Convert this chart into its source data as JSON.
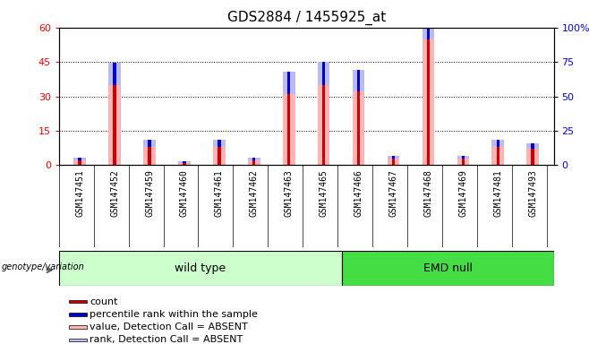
{
  "title": "GDS2884 / 1455925_at",
  "samples": [
    "GSM147451",
    "GSM147452",
    "GSM147459",
    "GSM147460",
    "GSM147461",
    "GSM147462",
    "GSM147463",
    "GSM147465",
    "GSM147466",
    "GSM147467",
    "GSM147468",
    "GSM147469",
    "GSM147481",
    "GSM147493"
  ],
  "group1_label": "wild type",
  "group2_label": "EMD null",
  "group1_count": 8,
  "group2_count": 6,
  "ylim_left": [
    0,
    60
  ],
  "yticks_left": [
    0,
    15,
    30,
    45,
    60
  ],
  "yticks_right": [
    0,
    25,
    50,
    75,
    100
  ],
  "ytick_right_labels": [
    "0",
    "25",
    "50",
    "75",
    "100%"
  ],
  "absent_value": [
    2,
    35,
    8,
    1,
    8,
    2,
    31,
    35,
    32,
    3,
    55,
    3,
    8,
    7
  ],
  "absent_rank": [
    2,
    16,
    5,
    1,
    5,
    2,
    16,
    17,
    16,
    2,
    28,
    2,
    5,
    4
  ],
  "count_values": [
    2,
    35,
    8,
    1,
    8,
    2,
    31,
    35,
    32,
    3,
    55,
    3,
    8,
    7
  ],
  "rank_values": [
    2,
    16,
    5,
    1,
    5,
    2,
    16,
    17,
    16,
    2,
    28,
    2,
    5,
    4
  ],
  "color_count": "#cc0000",
  "color_rank": "#0000cc",
  "color_absent_value": "#ffb3b3",
  "color_absent_rank": "#bbbbee",
  "bg_label_wt": "#ccffcc",
  "bg_label_emd": "#44dd44",
  "legend_items": [
    {
      "color": "#cc0000",
      "label": "count"
    },
    {
      "color": "#0000cc",
      "label": "percentile rank within the sample"
    },
    {
      "color": "#ffb3b3",
      "label": "value, Detection Call = ABSENT"
    },
    {
      "color": "#bbbbee",
      "label": "rank, Detection Call = ABSENT"
    }
  ]
}
